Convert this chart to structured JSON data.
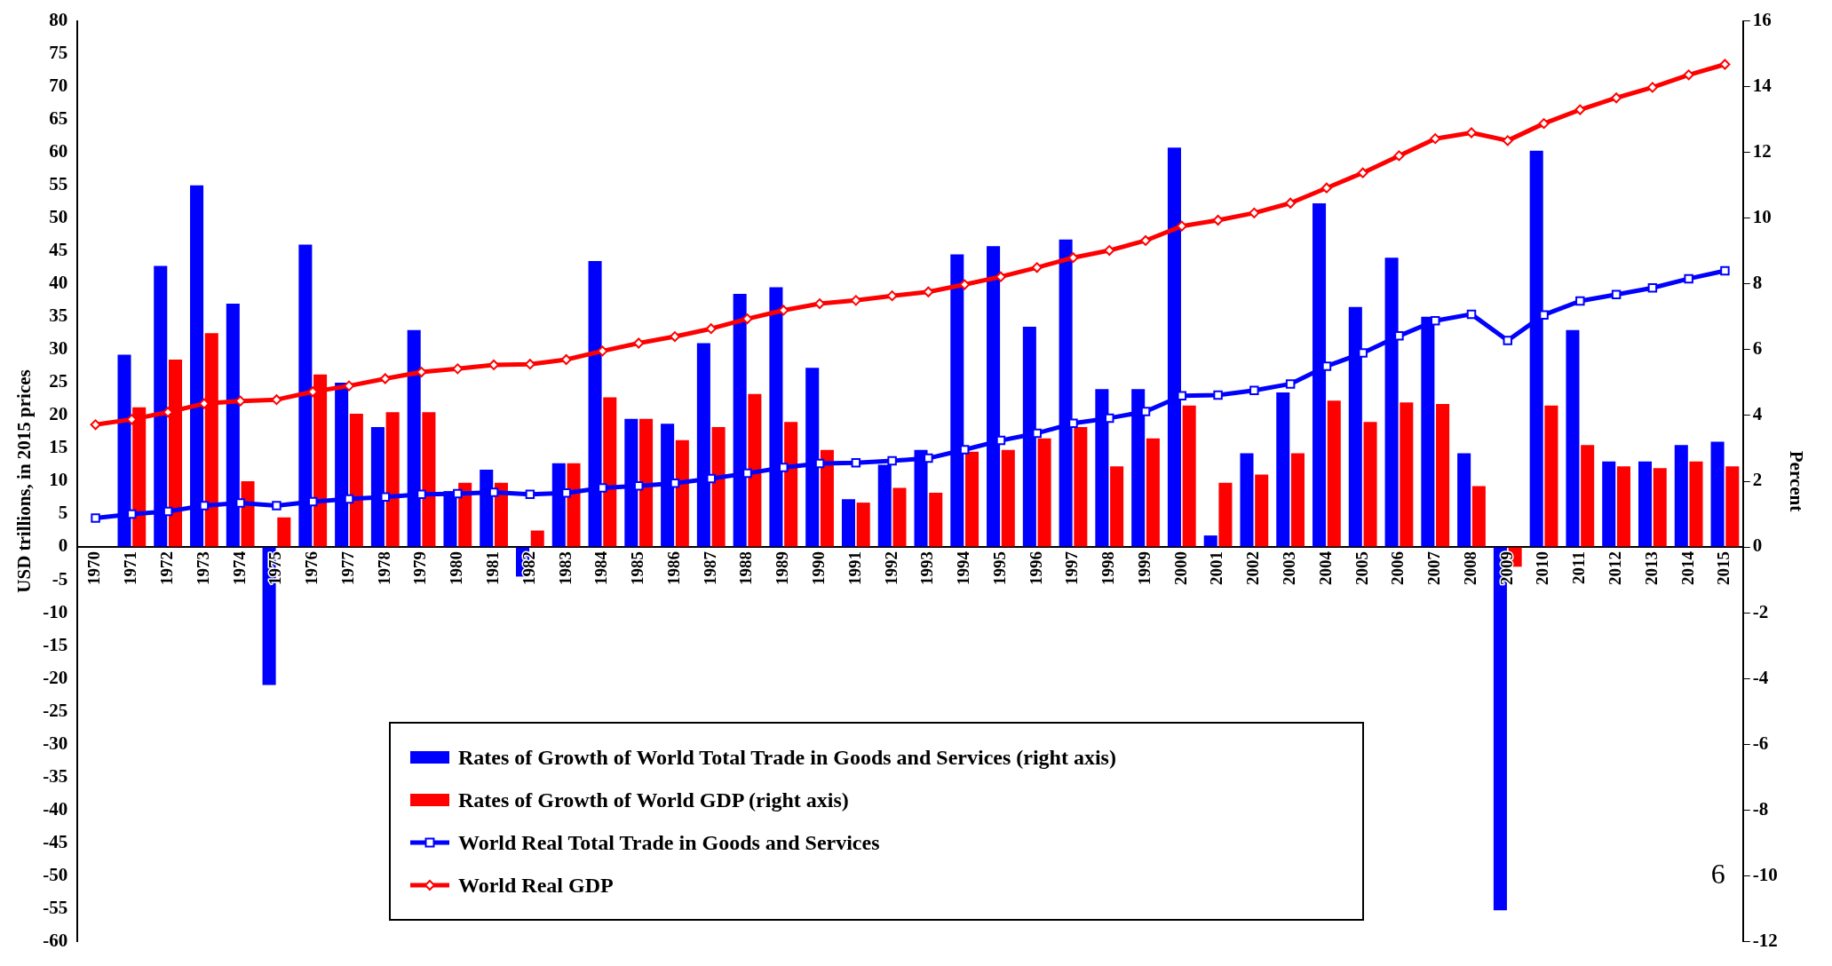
{
  "chart_data": {
    "type": "bar",
    "ylabel": "USD trillions, in 2015 prices",
    "y2label": "Percent",
    "ylim": [
      -60,
      80
    ],
    "yticks": [
      -60,
      -55,
      -50,
      -45,
      -40,
      -35,
      -30,
      -25,
      -20,
      -15,
      -10,
      -5,
      0,
      5,
      10,
      15,
      20,
      25,
      30,
      35,
      40,
      45,
      50,
      55,
      60,
      65,
      70,
      75,
      80
    ],
    "y2lim": [
      -12,
      16
    ],
    "y2ticks": [
      -12,
      -10,
      -8,
      -6,
      -4,
      -2,
      0,
      2,
      4,
      6,
      8,
      10,
      12,
      14,
      16
    ],
    "grid": false,
    "legend": "bottom",
    "line_style": "solid",
    "annotations": [
      "6"
    ],
    "categories": [
      "1970",
      "1971",
      "1972",
      "1973",
      "1974",
      "1975",
      "1976",
      "1977",
      "1978",
      "1979",
      "1980",
      "1981",
      "1982",
      "1983",
      "1984",
      "1985",
      "1986",
      "1987",
      "1988",
      "1989",
      "1990",
      "1991",
      "1992",
      "1993",
      "1994",
      "1995",
      "1996",
      "1997",
      "1998",
      "1999",
      "2000",
      "2001",
      "2002",
      "2003",
      "2004",
      "2005",
      "2006",
      "2007",
      "2008",
      "2009",
      "2010",
      "2011",
      "2012",
      "2013",
      "2014",
      "2015"
    ],
    "series": [
      {
        "name": "Rates of Growth of World Total Trade in Goods and Services (right axis)",
        "axis": "y2",
        "color": "#0000ff",
        "values": [
          null,
          5.85,
          8.55,
          11.0,
          7.4,
          -4.2,
          9.2,
          5.0,
          3.65,
          6.6,
          1.7,
          2.35,
          -0.9,
          2.55,
          8.7,
          3.9,
          3.75,
          6.2,
          7.7,
          7.9,
          5.45,
          1.45,
          2.5,
          2.95,
          8.9,
          9.15,
          6.7,
          9.35,
          4.8,
          4.8,
          12.15,
          0.35,
          2.85,
          4.7,
          10.45,
          7.3,
          8.8,
          7.0,
          2.85,
          -11.05,
          12.05,
          6.6,
          2.6,
          2.6,
          3.1,
          3.2
        ]
      },
      {
        "name": "Rates of Growth of World GDP (right axis)",
        "axis": "y2",
        "color": "#ff0000",
        "values": [
          null,
          4.25,
          5.7,
          6.5,
          2.0,
          0.9,
          5.25,
          4.05,
          4.1,
          4.1,
          1.95,
          1.95,
          0.5,
          2.55,
          4.55,
          3.9,
          3.25,
          3.65,
          4.65,
          3.8,
          2.95,
          1.35,
          1.8,
          1.65,
          2.9,
          2.95,
          3.3,
          3.65,
          2.45,
          3.3,
          4.3,
          1.95,
          2.2,
          2.85,
          4.45,
          3.8,
          4.4,
          4.35,
          1.85,
          -0.6,
          4.3,
          3.1,
          2.45,
          2.4,
          2.6,
          2.45
        ]
      },
      {
        "name": "World Real Total Trade in Goods and Services",
        "type": "line",
        "axis": "y",
        "color": "#0000ff",
        "marker": "square",
        "values": [
          4.4,
          5.0,
          5.4,
          6.3,
          6.7,
          6.3,
          6.9,
          7.3,
          7.6,
          8.0,
          8.1,
          8.3,
          8.0,
          8.2,
          9.0,
          9.3,
          9.7,
          10.4,
          11.2,
          12.1,
          12.7,
          12.8,
          13.1,
          13.5,
          14.8,
          16.2,
          17.3,
          18.8,
          19.6,
          20.6,
          23.0,
          23.1,
          23.8,
          24.8,
          27.5,
          29.5,
          32.1,
          34.4,
          35.4,
          31.4,
          35.3,
          37.4,
          38.4,
          39.4,
          40.8,
          42.0
        ]
      },
      {
        "name": "World Real GDP",
        "type": "line",
        "axis": "y",
        "color": "#ff0000",
        "marker": "diamond",
        "values": [
          18.6,
          19.4,
          20.5,
          21.8,
          22.2,
          22.4,
          23.6,
          24.5,
          25.6,
          26.6,
          27.1,
          27.7,
          27.8,
          28.5,
          29.8,
          31.0,
          32.0,
          33.2,
          34.7,
          36.0,
          37.0,
          37.5,
          38.2,
          38.8,
          39.9,
          41.1,
          42.5,
          44.0,
          45.1,
          46.6,
          48.8,
          49.7,
          50.8,
          52.3,
          54.6,
          56.9,
          59.5,
          62.1,
          63.0,
          61.8,
          64.4,
          66.5,
          68.3,
          69.9,
          71.8,
          73.4
        ]
      }
    ]
  }
}
